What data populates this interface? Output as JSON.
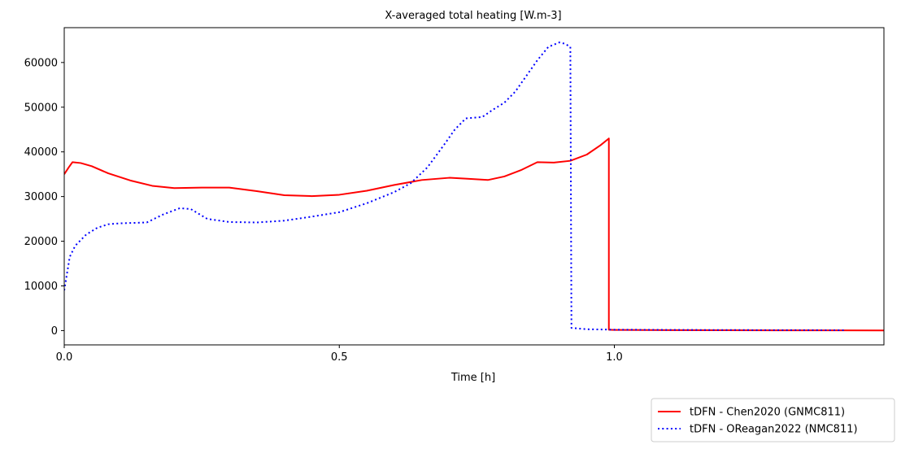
{
  "chart_data": {
    "type": "line",
    "title": "X-averaged total heating [W.m-3]",
    "xlabel": "Time [h]",
    "ylabel": "",
    "xlim": [
      0.0,
      1.49
    ],
    "ylim": [
      -3200,
      67800
    ],
    "xticks": [
      {
        "value": 0.0,
        "label": "0.0"
      },
      {
        "value": 0.5,
        "label": "0.5"
      },
      {
        "value": 1.0,
        "label": "1.0"
      }
    ],
    "yticks": [
      {
        "value": 0,
        "label": "0"
      },
      {
        "value": 10000,
        "label": "10000"
      },
      {
        "value": 20000,
        "label": "20000"
      },
      {
        "value": 30000,
        "label": "30000"
      },
      {
        "value": 40000,
        "label": "40000"
      },
      {
        "value": 50000,
        "label": "50000"
      },
      {
        "value": 60000,
        "label": "60000"
      }
    ],
    "grid": false,
    "legend_position": "lower-right, outside plot",
    "series": [
      {
        "name": "tDFN - Chen2020 (GNMC811)",
        "color": "#ff0000",
        "style": "solid",
        "x": [
          0.0,
          0.008,
          0.015,
          0.03,
          0.05,
          0.08,
          0.12,
          0.16,
          0.2,
          0.25,
          0.3,
          0.35,
          0.4,
          0.45,
          0.5,
          0.55,
          0.6,
          0.65,
          0.7,
          0.73,
          0.77,
          0.8,
          0.83,
          0.86,
          0.89,
          0.92,
          0.95,
          0.975,
          0.99,
          0.99,
          1.0,
          1.1,
          1.2,
          1.3,
          1.4,
          1.49
        ],
        "y": [
          35000,
          36500,
          37700,
          37500,
          36800,
          35200,
          33600,
          32400,
          31900,
          32000,
          32000,
          31200,
          30300,
          30100,
          30400,
          31300,
          32600,
          33700,
          34200,
          34000,
          33700,
          34500,
          35900,
          37700,
          37600,
          38000,
          39400,
          41500,
          43000,
          200,
          150,
          100,
          80,
          60,
          50,
          40
        ]
      },
      {
        "name": "tDFN - OReagan2022 (NMC811)",
        "color": "#0000ff",
        "style": "dotted",
        "x": [
          0.0,
          0.01,
          0.02,
          0.04,
          0.06,
          0.08,
          0.1,
          0.15,
          0.18,
          0.21,
          0.23,
          0.26,
          0.3,
          0.35,
          0.4,
          0.45,
          0.5,
          0.55,
          0.6,
          0.63,
          0.66,
          0.69,
          0.71,
          0.73,
          0.76,
          0.78,
          0.8,
          0.82,
          0.84,
          0.86,
          0.88,
          0.9,
          0.91,
          0.92,
          0.922,
          0.95,
          1.0,
          1.1,
          1.2,
          1.3,
          1.42
        ],
        "y": [
          9000,
          16500,
          19000,
          21500,
          23000,
          23800,
          24000,
          24200,
          26000,
          27400,
          27200,
          25000,
          24300,
          24200,
          24600,
          25500,
          26500,
          28500,
          31000,
          33000,
          36500,
          41500,
          45000,
          47500,
          47800,
          49500,
          51000,
          53500,
          57000,
          60500,
          63500,
          64500,
          64200,
          63500,
          600,
          300,
          200,
          150,
          120,
          100,
          80
        ]
      }
    ]
  }
}
